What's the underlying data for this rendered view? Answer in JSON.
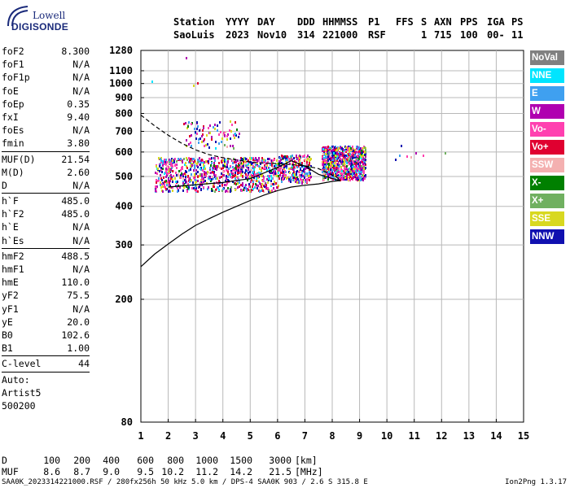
{
  "logo": {
    "line1": "Lowell",
    "line2": "DIGISONDE"
  },
  "header": {
    "labels": [
      "Station",
      "YYYY",
      "DAY",
      "DDD",
      "HHMMSS",
      "P1",
      "FFS",
      "S",
      "AXN",
      "PPS",
      "IGA",
      "PS"
    ],
    "values": [
      "SaoLuis",
      "2023",
      "Nov10",
      "314",
      "221000",
      "RSF",
      "",
      "1",
      "715",
      "100",
      "00-",
      "11"
    ]
  },
  "params": [
    [
      {
        "name": "foF2",
        "value": "8.300"
      },
      {
        "name": "foF1",
        "value": "N/A"
      },
      {
        "name": "foF1p",
        "value": "N/A"
      },
      {
        "name": "foE",
        "value": "N/A"
      },
      {
        "name": "foEp",
        "value": "0.35"
      },
      {
        "name": "fxI",
        "value": "9.40"
      },
      {
        "name": "foEs",
        "value": "N/A"
      },
      {
        "name": "fmin",
        "value": "3.80"
      }
    ],
    [
      {
        "name": "MUF(D)",
        "value": "21.54"
      },
      {
        "name": "M(D)",
        "value": "2.60"
      },
      {
        "name": "D",
        "value": "N/A"
      }
    ],
    [
      {
        "name": "h`F",
        "value": "485.0"
      },
      {
        "name": "h`F2",
        "value": "485.0"
      },
      {
        "name": "h`E",
        "value": "N/A"
      },
      {
        "name": "h`Es",
        "value": "N/A"
      }
    ],
    [
      {
        "name": "hmF2",
        "value": "488.5"
      },
      {
        "name": "hmF1",
        "value": "N/A"
      },
      {
        "name": "hmE",
        "value": "110.0"
      },
      {
        "name": "yF2",
        "value": "75.5"
      },
      {
        "name": "yF1",
        "value": "N/A"
      },
      {
        "name": "yE",
        "value": "20.0"
      },
      {
        "name": "B0",
        "value": "102.6"
      },
      {
        "name": "B1",
        "value": "1.00"
      }
    ],
    [
      {
        "name": "C-level",
        "value": "44"
      }
    ]
  ],
  "notes": [
    "Auto:",
    "Artist5",
    "500200"
  ],
  "legend": [
    {
      "label": "NoVal",
      "color": "#808080"
    },
    {
      "label": "NNE",
      "color": "#00e5ff"
    },
    {
      "label": "E",
      "color": "#3fa0f0"
    },
    {
      "label": "W",
      "color": "#b000b0"
    },
    {
      "label": "Vo-",
      "color": "#ff40b0"
    },
    {
      "label": "Vo+",
      "color": "#e00030"
    },
    {
      "label": "SSW",
      "color": "#f4b0b0"
    },
    {
      "label": "X-",
      "color": "#008000"
    },
    {
      "label": "X+",
      "color": "#70b060"
    },
    {
      "label": "SSE",
      "color": "#d8d820"
    },
    {
      "label": "NNW",
      "color": "#1010b0"
    }
  ],
  "muf_table": {
    "row1_label": "D",
    "row1": [
      "100",
      "200",
      "400",
      "600",
      "800",
      "1000",
      "1500",
      "3000",
      "[km]"
    ],
    "row2_label": "MUF",
    "row2": [
      "8.6",
      "8.7",
      "9.0",
      "9.5",
      "10.2",
      "11.2",
      "14.2",
      "21.5",
      "[MHz]"
    ]
  },
  "footer": {
    "left": "SAA0K_2023314221000.RSF / 280fx256h 50 kHz 5.0 km / DPS-4 SAA0K 903 / 2.6 S 315.8 E",
    "right": "Ion2Png 1.3.17"
  },
  "chart_data": {
    "type": "scatter",
    "title": "",
    "xlabel": "",
    "ylabel": "",
    "xlim": [
      1,
      15
    ],
    "ylim": [
      80,
      1280
    ],
    "x_ticks": [
      1,
      2,
      3,
      4,
      5,
      6,
      7,
      8,
      9,
      10,
      11,
      12,
      13,
      14,
      15
    ],
    "y_ticks": [
      80,
      200,
      300,
      400,
      500,
      600,
      700,
      800,
      900,
      1000,
      1100,
      1280
    ],
    "y_scale": "log",
    "grid": true,
    "legend_placement": "right",
    "echo_clusters": [
      {
        "x_range": [
          1.5,
          6.0
        ],
        "y_range": [
          450,
          580
        ],
        "density": "high"
      },
      {
        "x_range": [
          6.0,
          7.2
        ],
        "y_range": [
          480,
          590
        ],
        "density": "medium"
      },
      {
        "x_range": [
          7.6,
          9.2
        ],
        "y_range": [
          490,
          630
        ],
        "density": "high"
      },
      {
        "x_range": [
          2.5,
          4.6
        ],
        "y_range": [
          620,
          760
        ],
        "density": "low"
      }
    ],
    "isolated_points": [
      {
        "x": 1.38,
        "y": 1022
      },
      {
        "x": 2.63,
        "y": 1222
      },
      {
        "x": 3.05,
        "y": 1012
      },
      {
        "x": 2.9,
        "y": 990
      },
      {
        "x": 10.45,
        "y": 588
      },
      {
        "x": 10.7,
        "y": 585
      },
      {
        "x": 10.85,
        "y": 580
      },
      {
        "x": 10.3,
        "y": 572
      },
      {
        "x": 11.05,
        "y": 600
      },
      {
        "x": 11.3,
        "y": 590
      },
      {
        "x": 12.1,
        "y": 598
      },
      {
        "x": 10.5,
        "y": 633
      }
    ],
    "series": [
      {
        "style": "solid",
        "x": [
          1.0,
          1.5,
          2.0,
          2.5,
          3.0,
          3.5,
          4.0,
          4.5,
          5.0,
          5.5,
          6.0,
          6.5,
          7.0,
          7.5,
          8.0,
          8.3
        ],
        "y": [
          255,
          280,
          302,
          325,
          347,
          365,
          383,
          400,
          418,
          435,
          450,
          462,
          468,
          473,
          482,
          485
        ]
      },
      {
        "style": "dashed",
        "x": [
          1.0,
          1.5,
          2.0,
          2.5,
          3.0,
          3.5,
          4.0,
          4.5,
          5.0,
          5.5,
          6.0,
          6.5,
          7.0,
          7.5,
          8.0,
          8.3
        ],
        "y": [
          790,
          730,
          680,
          640,
          610,
          588,
          575,
          565,
          557,
          552,
          550,
          546,
          541,
          530,
          505,
          490
        ]
      },
      {
        "style": "solid",
        "x": [
          2.0,
          3.0,
          4.0,
          5.0,
          6.0,
          6.5,
          7.0,
          7.5,
          8.0,
          8.3
        ],
        "y": [
          462,
          470,
          478,
          492,
          535,
          562,
          540,
          508,
          492,
          485
        ]
      }
    ]
  }
}
